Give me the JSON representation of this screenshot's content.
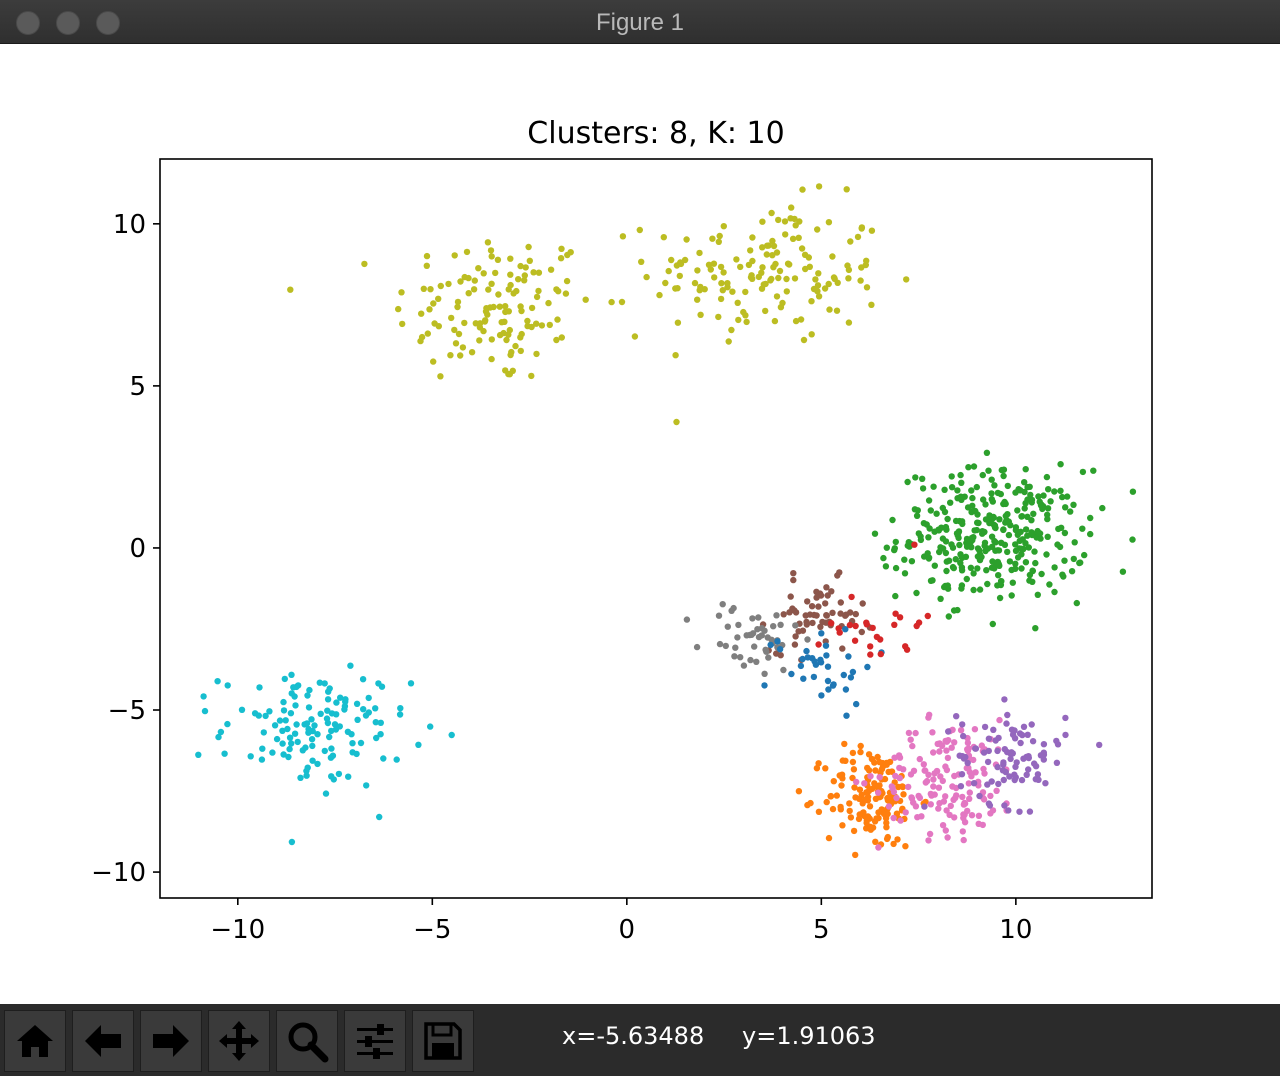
{
  "window": {
    "title": "Figure 1"
  },
  "toolbar": {
    "buttons": [
      {
        "name": "home-icon",
        "tooltip": "Reset original view"
      },
      {
        "name": "back-arrow-icon",
        "tooltip": "Back to previous view"
      },
      {
        "name": "forward-arrow-icon",
        "tooltip": "Forward to next view"
      },
      {
        "name": "pan-icon",
        "tooltip": "Pan axes"
      },
      {
        "name": "zoom-icon",
        "tooltip": "Zoom to rectangle"
      },
      {
        "name": "configure-subplots-icon",
        "tooltip": "Configure subplots"
      },
      {
        "name": "save-icon",
        "tooltip": "Save the figure"
      }
    ],
    "x_readout": "x=-5.63488",
    "y_readout": "y=1.91063"
  },
  "chart_data": {
    "type": "scatter",
    "title": "Clusters: 8, K: 10",
    "xlabel": "",
    "ylabel": "",
    "xlim": [
      -12,
      13.5
    ],
    "ylim": [
      -10.8,
      12
    ],
    "xticks": [
      -10,
      -5,
      0,
      5,
      10
    ],
    "xtick_labels": [
      "−10",
      "−5",
      "0",
      "5",
      "10"
    ],
    "yticks": [
      -10,
      -5,
      0,
      5,
      10
    ],
    "ytick_labels": [
      "−10",
      "−5",
      "0",
      "5",
      "10"
    ],
    "grid": false,
    "legend": "none",
    "clusters": [
      {
        "color": "#bcbd22",
        "center": [
          -3.4,
          7.4
        ],
        "spread": [
          1.3,
          1.2
        ],
        "count": 130
      },
      {
        "color": "#bcbd22",
        "center": [
          3.6,
          8.5
        ],
        "spread": [
          1.5,
          1.1
        ],
        "count": 150
      },
      {
        "color": "#2ca02c",
        "center": [
          9.4,
          0.4
        ],
        "spread": [
          1.2,
          1.0
        ],
        "count": 330
      },
      {
        "color": "#17becf",
        "center": [
          -8.0,
          -5.6
        ],
        "spread": [
          1.2,
          0.9
        ],
        "count": 130
      },
      {
        "color": "#8c564b",
        "center": [
          4.9,
          -2.1
        ],
        "spread": [
          0.6,
          0.55
        ],
        "count": 60
      },
      {
        "color": "#7f7f7f",
        "center": [
          3.2,
          -2.8
        ],
        "spread": [
          0.65,
          0.6
        ],
        "count": 45
      },
      {
        "color": "#1f77b4",
        "center": [
          5.0,
          -3.6
        ],
        "spread": [
          0.7,
          0.6
        ],
        "count": 35
      },
      {
        "color": "#d62728",
        "center": [
          6.4,
          -2.3
        ],
        "spread": [
          0.6,
          0.7
        ],
        "count": 25
      },
      {
        "color": "#ff7f0e",
        "center": [
          6.3,
          -7.7
        ],
        "spread": [
          0.6,
          0.8
        ],
        "count": 140
      },
      {
        "color": "#e377c2",
        "center": [
          8.3,
          -7.1
        ],
        "spread": [
          0.9,
          0.9
        ],
        "count": 150
      },
      {
        "color": "#9467bd",
        "center": [
          9.9,
          -6.4
        ],
        "spread": [
          0.7,
          0.75
        ],
        "count": 90
      }
    ]
  }
}
